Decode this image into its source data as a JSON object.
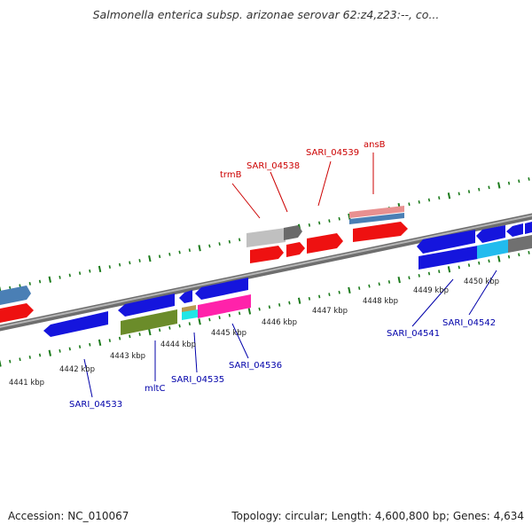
{
  "title": "Salmonella enterica subsp. arizonae serovar 62:z4,z23:--, co...",
  "footer": {
    "accession": "Accession: NC_010067",
    "topology": "Topology: circular; Length: 4,600,800 bp; Genes: 4,634"
  },
  "colors": {
    "forward_label": "#cc0000",
    "reverse_label": "#0000aa",
    "tick": "#1a7a1a",
    "backbone": "#8c8c8c"
  },
  "kbp_labels": [
    "4441 kbp",
    "4442 kbp",
    "4443 kbp",
    "4444 kbp",
    "4445 kbp",
    "4446 kbp",
    "4447 kbp",
    "4448 kbp",
    "4449 kbp",
    "4450 kbp"
  ],
  "forward_labels": [
    "trmB",
    "SARI_04538",
    "SARI_04539",
    "ansB"
  ],
  "reverse_labels": [
    "SARI_04533",
    "mltC",
    "SARI_04535",
    "SARI_04536",
    "SARI_04541",
    "SARI_04542"
  ]
}
